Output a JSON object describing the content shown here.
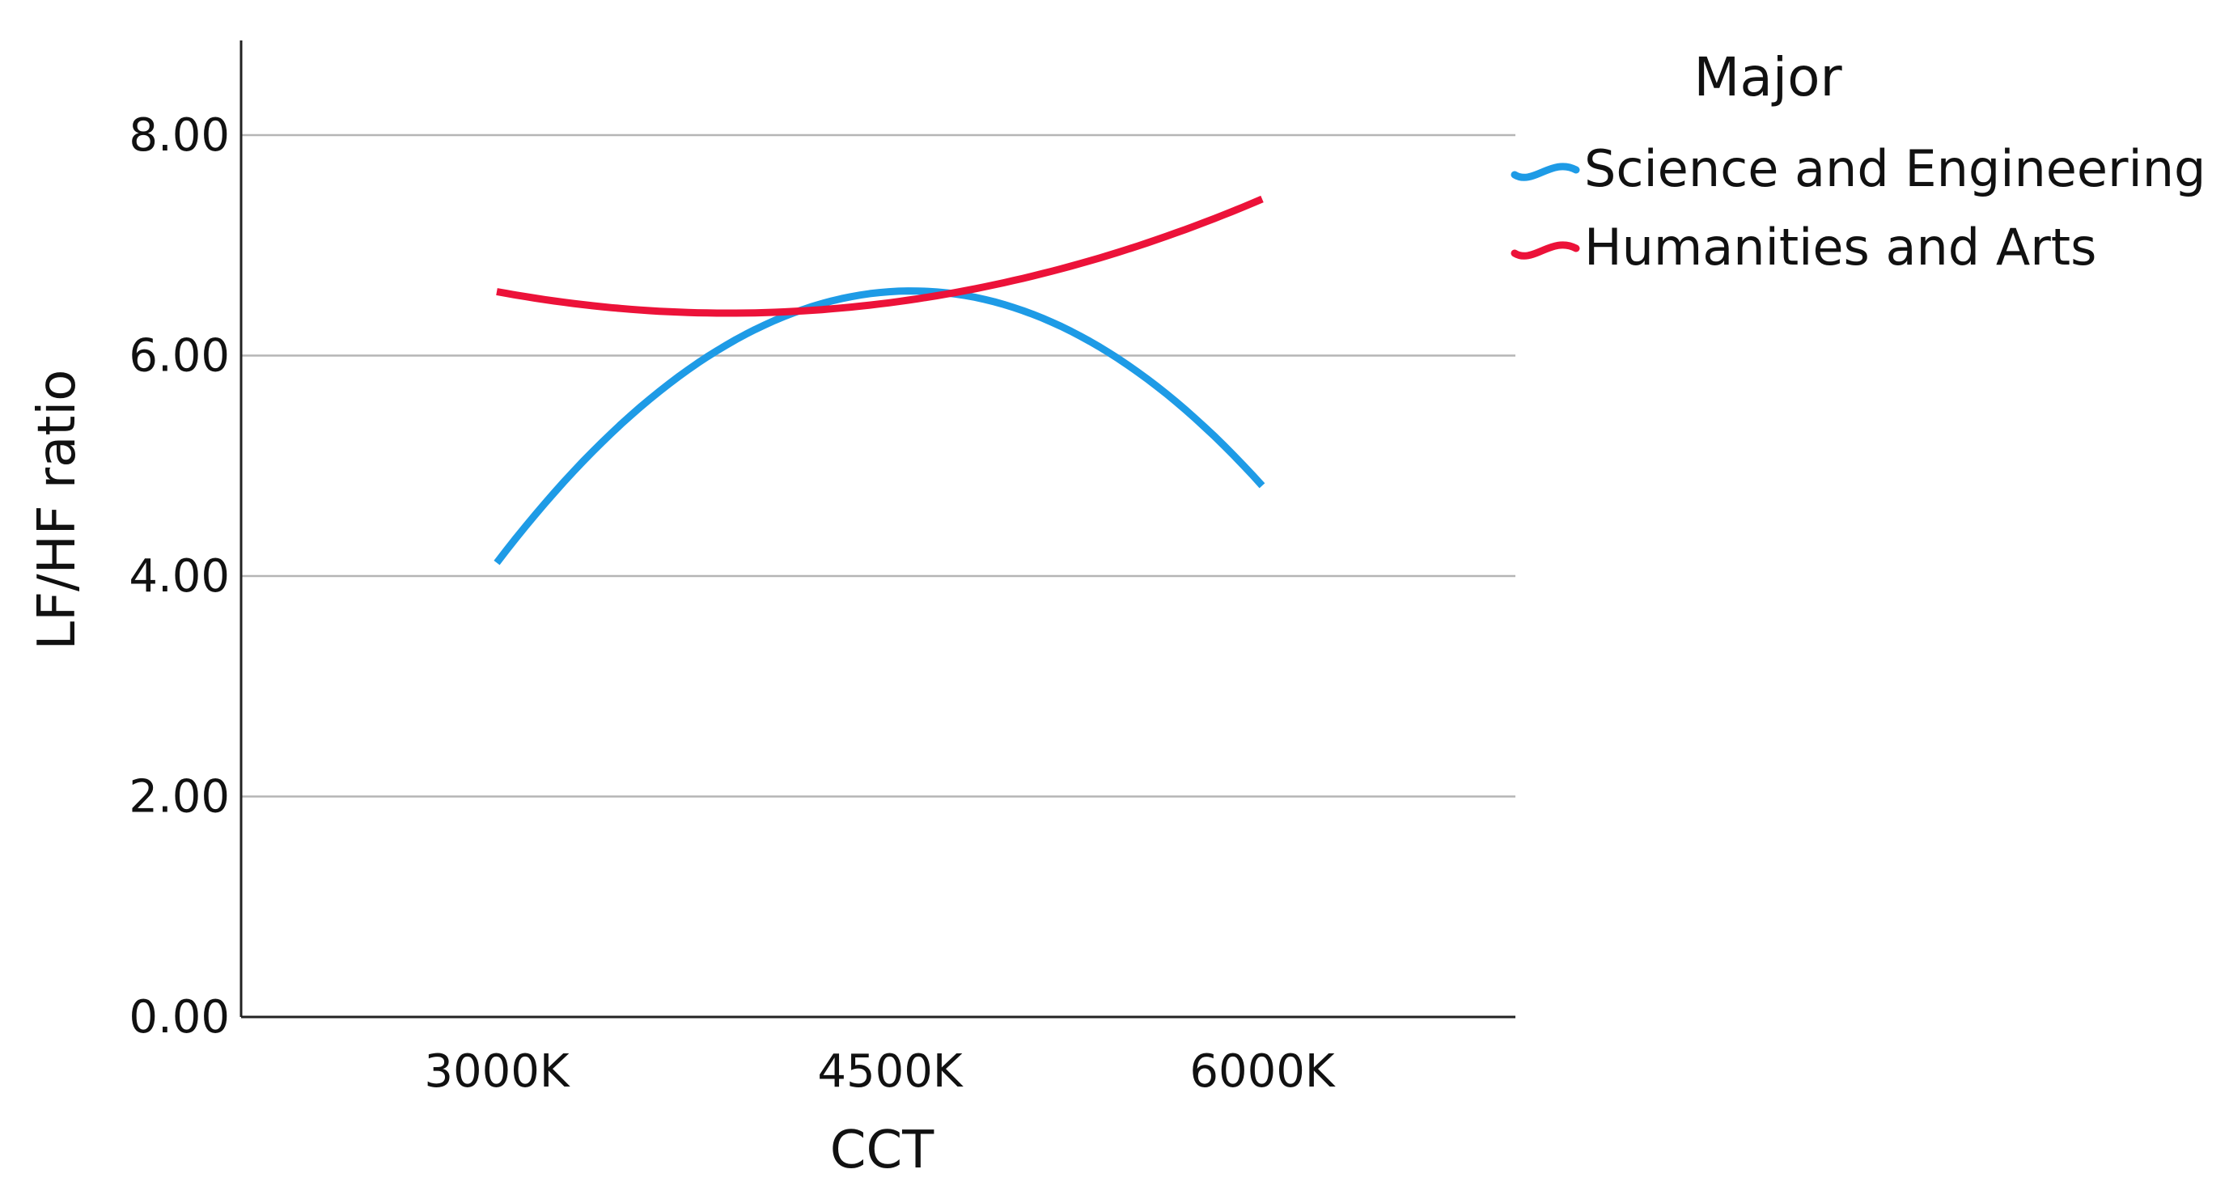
{
  "chart_data": {
    "type": "line",
    "title": "",
    "xlabel": "CCT",
    "ylabel": "LF/HF ratio",
    "categories": [
      "3000K",
      "4500K",
      "6000K"
    ],
    "ylim": [
      0,
      8
    ],
    "yticks": [
      0,
      2,
      4,
      6,
      8
    ],
    "ytick_labels": [
      "0.00",
      "2.00",
      "4.00",
      "6.00",
      "8.00"
    ],
    "grid": true,
    "legend": {
      "title": "Major",
      "position": "top-right"
    },
    "series": [
      {
        "name": "Science and Engineering",
        "color": "#1e9be6",
        "values": [
          4.12,
          6.58,
          4.82
        ]
      },
      {
        "name": "Humanities and Arts",
        "color": "#ec1239",
        "values": [
          6.58,
          6.48,
          7.42
        ]
      }
    ]
  }
}
